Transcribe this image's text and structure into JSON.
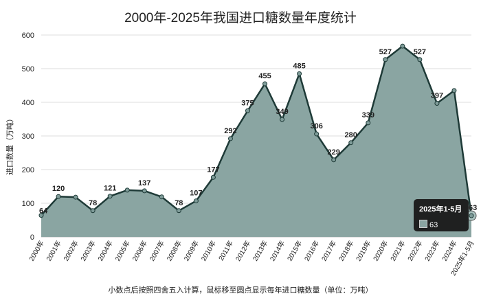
{
  "chart_data": {
    "type": "area",
    "title": "2000年-2025年我国进口糖数量年度统计",
    "ylabel": "进口数量（万吨）",
    "xlabel": "",
    "footnote": "小数点后按照四舍五入计算，鼠标移至圆点显示每年进口糖数量（单位：万吨）",
    "ylim": [
      0,
      600
    ],
    "yticks": [
      0,
      100,
      200,
      300,
      400,
      500,
      600
    ],
    "grid": "horizontal",
    "categories": [
      "2000年",
      "2001年",
      "2002年",
      "2003年",
      "2004年",
      "2005年",
      "2006年",
      "2007年",
      "2008年",
      "2009年",
      "2010年",
      "2011年",
      "2012年",
      "2013年",
      "2014年",
      "2015年",
      "2016年",
      "2017年",
      "2018年",
      "2019年",
      "2020年",
      "2021年",
      "2022年",
      "2023年",
      "2024年",
      "2025年1-5月"
    ],
    "series": [
      {
        "name": "进口糖数量",
        "values": [
          64,
          120,
          118,
          78,
          121,
          139,
          137,
          119,
          78,
          107,
          177,
          292,
          375,
          455,
          349,
          485,
          306,
          229,
          280,
          339,
          527,
          567,
          527,
          397,
          435,
          63
        ]
      }
    ],
    "data_labels": [
      {
        "index": 0,
        "text": "64"
      },
      {
        "index": 1,
        "text": "120"
      },
      {
        "index": 3,
        "text": "78"
      },
      {
        "index": 4,
        "text": "121"
      },
      {
        "index": 6,
        "text": "137"
      },
      {
        "index": 8,
        "text": "78"
      },
      {
        "index": 9,
        "text": "107"
      },
      {
        "index": 10,
        "text": "177"
      },
      {
        "index": 11,
        "text": "292"
      },
      {
        "index": 12,
        "text": "375"
      },
      {
        "index": 13,
        "text": "455"
      },
      {
        "index": 14,
        "text": "349"
      },
      {
        "index": 15,
        "text": "485"
      },
      {
        "index": 16,
        "text": "306"
      },
      {
        "index": 17,
        "text": "229"
      },
      {
        "index": 18,
        "text": "280"
      },
      {
        "index": 19,
        "text": "339"
      },
      {
        "index": 20,
        "text": "527"
      },
      {
        "index": 22,
        "text": "527"
      },
      {
        "index": 23,
        "text": "397"
      },
      {
        "index": 25,
        "text": "63"
      }
    ],
    "tooltip": {
      "index": 25,
      "title": "2025年1-5月",
      "value_text": "63"
    },
    "colors": {
      "area": "#8aa5a2",
      "line": "#1e3a37",
      "point": "#7f9c99",
      "highlight": "#aac3c0",
      "grid": "#dddddd"
    }
  }
}
